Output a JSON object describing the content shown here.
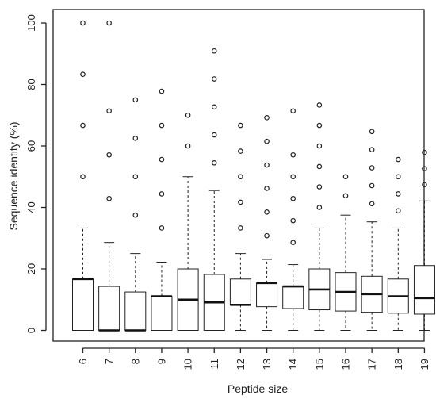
{
  "chart_data": {
    "type": "box",
    "xlabel": "Peptide size",
    "ylabel": "Sequence identity (%)",
    "ylim": [
      0,
      100
    ],
    "yticks": [
      0,
      20,
      40,
      60,
      80,
      100
    ],
    "categories": [
      "6",
      "7",
      "8",
      "9",
      "10",
      "11",
      "12",
      "13",
      "14",
      "15",
      "16",
      "17",
      "18",
      "19"
    ],
    "boxes": [
      {
        "category": "6",
        "whisker_low": 0,
        "q1": 0,
        "median": 16.7,
        "q3": 16.7,
        "whisker_high": 33.3,
        "outliers": [
          50,
          66.7,
          83.3,
          100
        ]
      },
      {
        "category": "7",
        "whisker_low": 0,
        "q1": 0,
        "median": 0,
        "q3": 14.3,
        "whisker_high": 28.6,
        "outliers": [
          42.9,
          57.1,
          71.4,
          100
        ]
      },
      {
        "category": "8",
        "whisker_low": 0,
        "q1": 0,
        "median": 0,
        "q3": 12.5,
        "whisker_high": 25,
        "outliers": [
          37.5,
          50,
          62.5,
          75
        ]
      },
      {
        "category": "9",
        "whisker_low": 0,
        "q1": 0,
        "median": 11.1,
        "q3": 11.1,
        "whisker_high": 22.2,
        "outliers": [
          33.3,
          44.4,
          55.6,
          66.7,
          77.8
        ]
      },
      {
        "category": "10",
        "whisker_low": 0,
        "q1": 0,
        "median": 10,
        "q3": 20,
        "whisker_high": 50,
        "outliers": [
          60,
          70
        ]
      },
      {
        "category": "11",
        "whisker_low": 0,
        "q1": 0,
        "median": 9.1,
        "q3": 18.2,
        "whisker_high": 45.5,
        "outliers": [
          54.5,
          63.6,
          72.7,
          81.8,
          90.9
        ]
      },
      {
        "category": "12",
        "whisker_low": 0,
        "q1": 8.3,
        "median": 8.3,
        "q3": 16.7,
        "whisker_high": 25,
        "outliers": [
          33.3,
          41.7,
          50,
          58.3,
          66.7
        ]
      },
      {
        "category": "13",
        "whisker_low": 0,
        "q1": 7.7,
        "median": 15.4,
        "q3": 15.4,
        "whisker_high": 23.1,
        "outliers": [
          30.8,
          38.5,
          46.2,
          53.8,
          61.5,
          69.2
        ]
      },
      {
        "category": "14",
        "whisker_low": 0,
        "q1": 7.1,
        "median": 14.3,
        "q3": 14.3,
        "whisker_high": 21.4,
        "outliers": [
          28.6,
          35.7,
          42.9,
          50,
          57.1,
          71.4
        ]
      },
      {
        "category": "15",
        "whisker_low": 0,
        "q1": 6.7,
        "median": 13.3,
        "q3": 20,
        "whisker_high": 33.3,
        "outliers": [
          40,
          46.7,
          53.3,
          60,
          66.7,
          73.3
        ]
      },
      {
        "category": "16",
        "whisker_low": 0,
        "q1": 6.3,
        "median": 12.5,
        "q3": 18.8,
        "whisker_high": 37.5,
        "outliers": [
          43.8,
          50
        ]
      },
      {
        "category": "17",
        "whisker_low": 0,
        "q1": 5.9,
        "median": 11.8,
        "q3": 17.6,
        "whisker_high": 35.3,
        "outliers": [
          41.2,
          47.1,
          52.9,
          58.8,
          64.7
        ]
      },
      {
        "category": "18",
        "whisker_low": 0,
        "q1": 5.6,
        "median": 11.1,
        "q3": 16.7,
        "whisker_high": 33.3,
        "outliers": [
          38.9,
          44.4,
          50,
          55.6
        ]
      },
      {
        "category": "19",
        "whisker_low": 0,
        "q1": 5.3,
        "median": 10.5,
        "q3": 21.1,
        "whisker_high": 42.1,
        "outliers": [
          47.4,
          52.6,
          57.9
        ]
      }
    ],
    "grid": false,
    "legend": "none"
  }
}
